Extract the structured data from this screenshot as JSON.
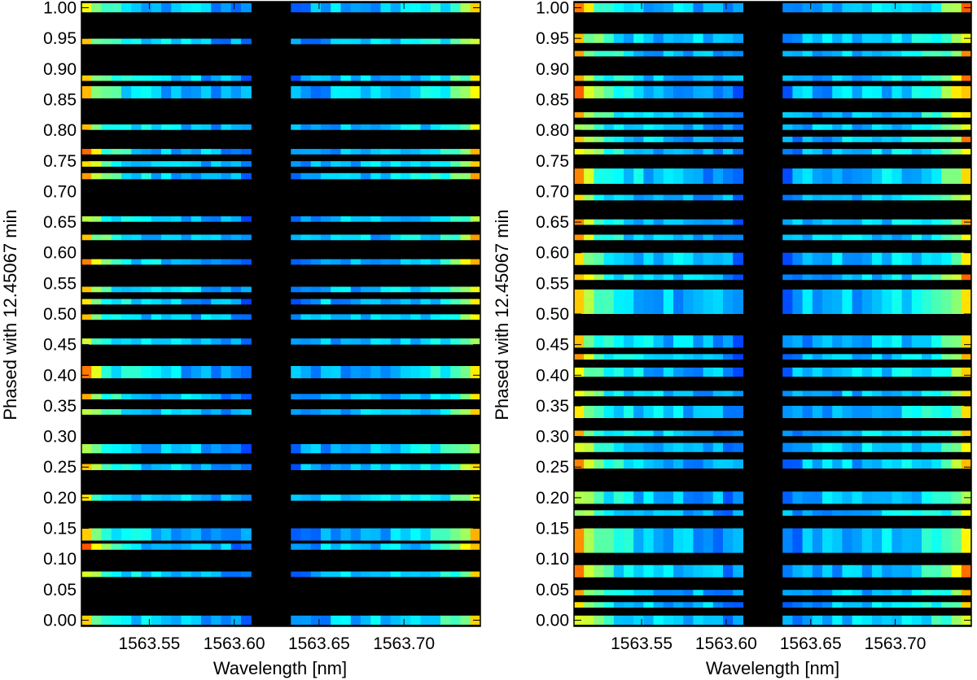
{
  "chart_data": [
    {
      "type": "heatmap",
      "xlabel": "Wavelength [nm]",
      "ylabel": "Phased with 12.45067 min",
      "x_ticks": [
        "1563.55",
        "1563.60",
        "1563.65",
        "1563.70"
      ],
      "x_tick_values": [
        1563.55,
        1563.6,
        1563.65,
        1563.7
      ],
      "y_ticks": [
        "0.00",
        "0.05",
        "0.10",
        "0.15",
        "0.20",
        "0.25",
        "0.30",
        "0.35",
        "0.40",
        "0.45",
        "0.50",
        "0.55",
        "0.60",
        "0.65",
        "0.70",
        "0.75",
        "0.80",
        "0.85",
        "0.90",
        "0.95",
        "1.00"
      ],
      "xlim": [
        1563.51,
        1563.745
      ],
      "ylim": [
        -0.01,
        1.01
      ],
      "gap_nm": [
        1563.61,
        1563.635
      ],
      "colormap": "jet",
      "background": "#000000",
      "phase_rows": [
        {
          "phase": 0.0,
          "h": 0.015
        },
        {
          "phase": 0.075,
          "h": 0.009
        },
        {
          "phase": 0.12,
          "h": 0.01
        },
        {
          "phase": 0.14,
          "h": 0.02
        },
        {
          "phase": 0.2,
          "h": 0.01
        },
        {
          "phase": 0.25,
          "h": 0.01
        },
        {
          "phase": 0.28,
          "h": 0.015
        },
        {
          "phase": 0.34,
          "h": 0.009
        },
        {
          "phase": 0.365,
          "h": 0.009
        },
        {
          "phase": 0.405,
          "h": 0.02
        },
        {
          "phase": 0.455,
          "h": 0.01
        },
        {
          "phase": 0.495,
          "h": 0.009
        },
        {
          "phase": 0.52,
          "h": 0.009
        },
        {
          "phase": 0.54,
          "h": 0.009
        },
        {
          "phase": 0.585,
          "h": 0.009
        },
        {
          "phase": 0.625,
          "h": 0.009
        },
        {
          "phase": 0.655,
          "h": 0.009
        },
        {
          "phase": 0.725,
          "h": 0.01
        },
        {
          "phase": 0.745,
          "h": 0.009
        },
        {
          "phase": 0.765,
          "h": 0.009
        },
        {
          "phase": 0.805,
          "h": 0.009
        },
        {
          "phase": 0.862,
          "h": 0.02
        },
        {
          "phase": 0.885,
          "h": 0.009
        },
        {
          "phase": 0.945,
          "h": 0.009
        },
        {
          "phase": 1.0,
          "h": 0.015
        }
      ]
    },
    {
      "type": "heatmap",
      "xlabel": "Wavelength [nm]",
      "ylabel": "Phased with 12.45067 min",
      "x_ticks": [
        "1563.55",
        "1563.60",
        "1563.65",
        "1563.70"
      ],
      "x_tick_values": [
        1563.55,
        1563.6,
        1563.65,
        1563.7
      ],
      "y_ticks": [
        "0.00",
        "0.05",
        "0.10",
        "0.15",
        "0.20",
        "0.25",
        "0.30",
        "0.35",
        "0.40",
        "0.45",
        "0.50",
        "0.55",
        "0.60",
        "0.65",
        "0.70",
        "0.75",
        "0.80",
        "0.85",
        "0.90",
        "0.95",
        "1.00"
      ],
      "xlim": [
        1563.51,
        1563.745
      ],
      "ylim": [
        -0.01,
        1.01
      ],
      "gap_nm": [
        1563.61,
        1563.635
      ],
      "colormap": "jet",
      "background": "#000000",
      "phase_rows": [
        {
          "phase": 0.0,
          "h": 0.015
        },
        {
          "phase": 0.025,
          "h": 0.009
        },
        {
          "phase": 0.045,
          "h": 0.009
        },
        {
          "phase": 0.08,
          "h": 0.02
        },
        {
          "phase": 0.13,
          "h": 0.04
        },
        {
          "phase": 0.175,
          "h": 0.009
        },
        {
          "phase": 0.2,
          "h": 0.02
        },
        {
          "phase": 0.255,
          "h": 0.015
        },
        {
          "phase": 0.282,
          "h": 0.015
        },
        {
          "phase": 0.305,
          "h": 0.009
        },
        {
          "phase": 0.34,
          "h": 0.02
        },
        {
          "phase": 0.37,
          "h": 0.009
        },
        {
          "phase": 0.405,
          "h": 0.015
        },
        {
          "phase": 0.43,
          "h": 0.009
        },
        {
          "phase": 0.455,
          "h": 0.02
        },
        {
          "phase": 0.52,
          "h": 0.04
        },
        {
          "phase": 0.56,
          "h": 0.009
        },
        {
          "phase": 0.59,
          "h": 0.02
        },
        {
          "phase": 0.625,
          "h": 0.009
        },
        {
          "phase": 0.65,
          "h": 0.009
        },
        {
          "phase": 0.69,
          "h": 0.009
        },
        {
          "phase": 0.725,
          "h": 0.025
        },
        {
          "phase": 0.765,
          "h": 0.009
        },
        {
          "phase": 0.785,
          "h": 0.009
        },
        {
          "phase": 0.805,
          "h": 0.009
        },
        {
          "phase": 0.825,
          "h": 0.009
        },
        {
          "phase": 0.862,
          "h": 0.02
        },
        {
          "phase": 0.885,
          "h": 0.009
        },
        {
          "phase": 0.925,
          "h": 0.009
        },
        {
          "phase": 0.95,
          "h": 0.015
        },
        {
          "phase": 1.0,
          "h": 0.015
        }
      ]
    }
  ]
}
